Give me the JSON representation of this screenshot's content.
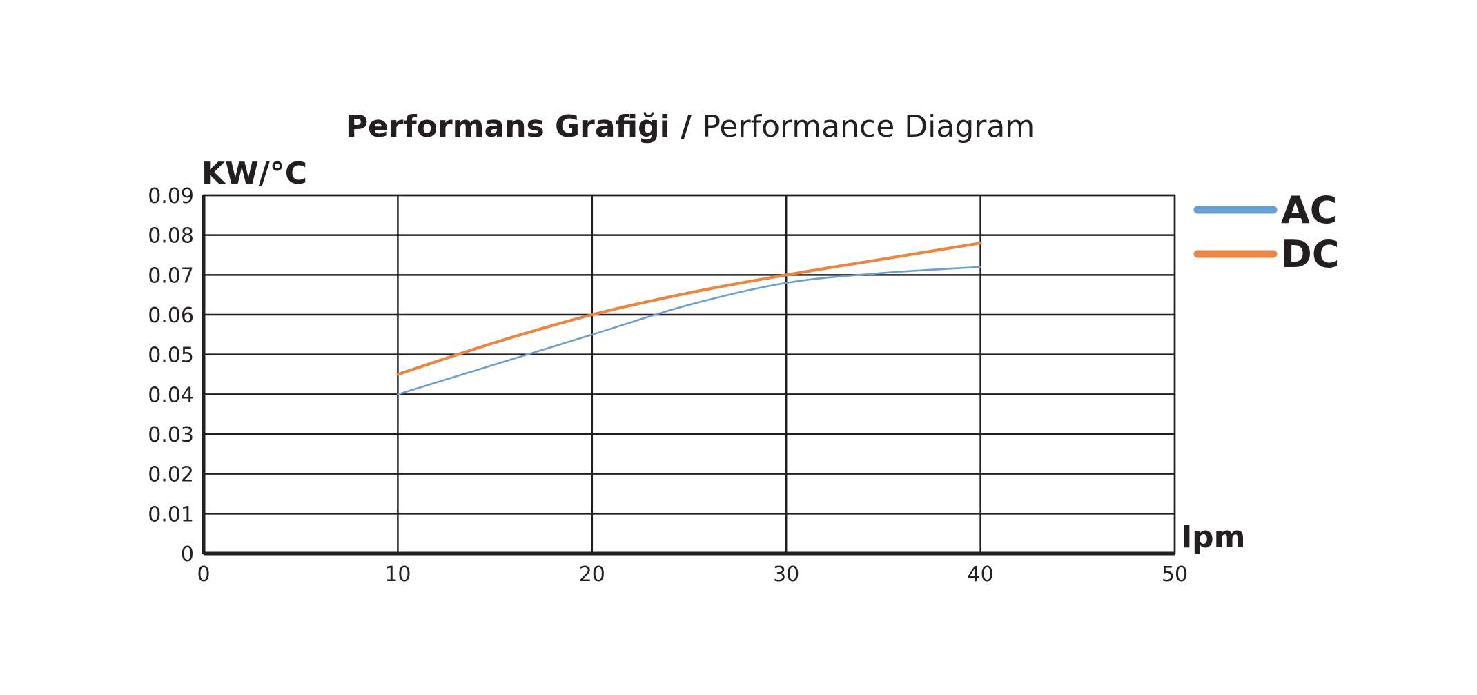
{
  "chart_data": {
    "type": "line",
    "title": "Performans Grafiği / Performance Diagram",
    "title_parts": {
      "bold": "Performans Grafiği / ",
      "regular": "Performance Diagram"
    },
    "xlabel": "lpm",
    "ylabel": "KW/°C",
    "xlim": [
      0,
      50
    ],
    "ylim": [
      0,
      0.09
    ],
    "x_ticks": [
      0,
      10,
      20,
      30,
      40,
      50
    ],
    "x_tick_labels": [
      "0",
      "10",
      "20",
      "30",
      "40",
      "50"
    ],
    "y_ticks": [
      0,
      0.01,
      0.02,
      0.03,
      0.04,
      0.05,
      0.06,
      0.07,
      0.08,
      0.09
    ],
    "y_tick_labels": [
      "0",
      "0.01",
      "0.02",
      "0.03",
      "0.04",
      "0.05",
      "0.06",
      "0.07",
      "0.08",
      "0.09"
    ],
    "grid": true,
    "legend_position": "right",
    "series": [
      {
        "name": "AC",
        "color": "#6b9fcf",
        "x": [
          10,
          15,
          20,
          25,
          30,
          35,
          40
        ],
        "y": [
          0.04,
          0.0475,
          0.055,
          0.0625,
          0.068,
          0.0705,
          0.072
        ]
      },
      {
        "name": "DC",
        "color": "#ea8643",
        "x": [
          10,
          15,
          20,
          25,
          30,
          35,
          40
        ],
        "y": [
          0.045,
          0.053,
          0.06,
          0.0655,
          0.07,
          0.074,
          0.078
        ]
      }
    ]
  }
}
